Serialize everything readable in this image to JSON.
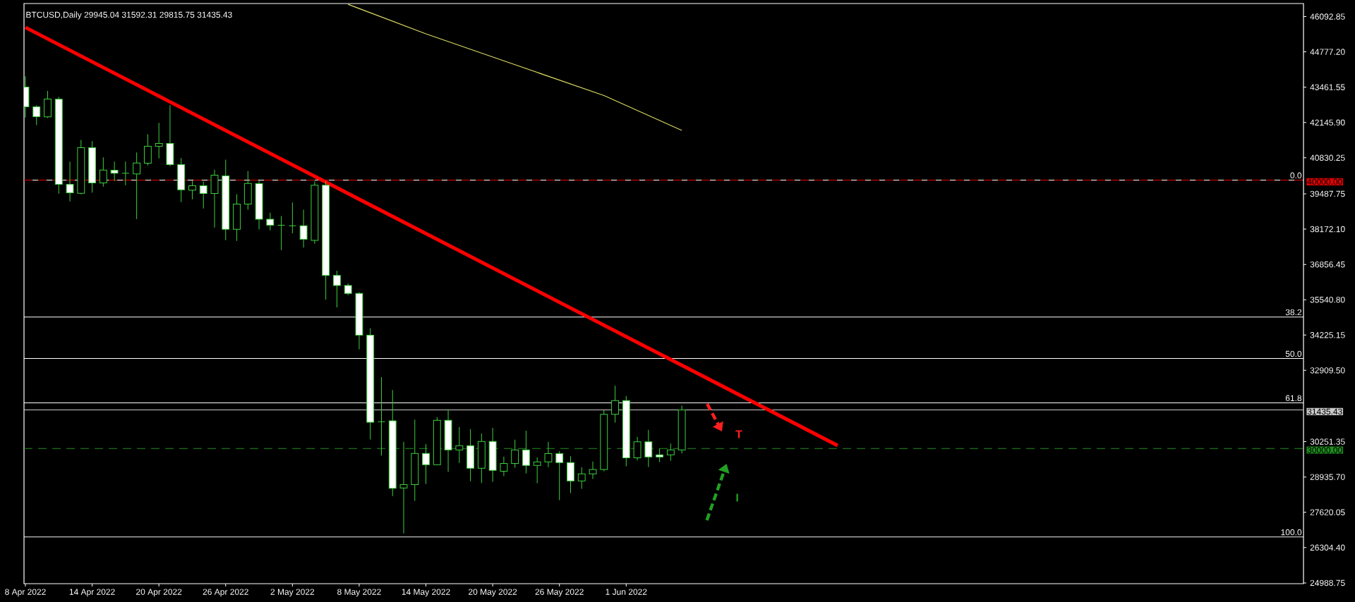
{
  "chart_data": {
    "type": "candlestick",
    "title": "BTCUSD,Daily  29945.04 31592.31 29815.75 31435.43",
    "color": "#3ccf3c",
    "x": [
      "2022-04-08",
      "2022-04-09",
      "2022-04-10",
      "2022-04-11",
      "2022-04-12",
      "2022-04-13",
      "2022-04-14",
      "2022-04-15",
      "2022-04-16",
      "2022-04-17",
      "2022-04-18",
      "2022-04-19",
      "2022-04-20",
      "2022-04-21",
      "2022-04-22",
      "2022-04-23",
      "2022-04-24",
      "2022-04-25",
      "2022-04-26",
      "2022-04-27",
      "2022-04-28",
      "2022-04-29",
      "2022-04-30",
      "2022-05-01",
      "2022-05-02",
      "2022-05-03",
      "2022-05-04",
      "2022-05-05",
      "2022-05-06",
      "2022-05-07",
      "2022-05-08",
      "2022-05-09",
      "2022-05-10",
      "2022-05-11",
      "2022-05-12",
      "2022-05-13",
      "2022-05-14",
      "2022-05-15",
      "2022-05-16",
      "2022-05-17",
      "2022-05-18",
      "2022-05-19",
      "2022-05-20",
      "2022-05-21",
      "2022-05-22",
      "2022-05-23",
      "2022-05-24",
      "2022-05-25",
      "2022-05-26",
      "2022-05-27",
      "2022-05-28",
      "2022-05-29",
      "2022-05-30",
      "2022-05-31",
      "2022-06-01",
      "2022-06-02",
      "2022-06-03",
      "2022-06-04",
      "2022-06-05",
      "2022-06-06"
    ],
    "ohlc": [
      [
        43467,
        43870,
        42329,
        42732
      ],
      [
        42732,
        42793,
        42049,
        42364
      ],
      [
        42355,
        43319,
        42312,
        43021
      ],
      [
        43012,
        43100,
        39492,
        39842
      ],
      [
        39842,
        40691,
        39203,
        39527
      ],
      [
        39509,
        41497,
        39465,
        41208
      ],
      [
        41208,
        41453,
        39535,
        39895
      ],
      [
        39895,
        40849,
        39754,
        40376
      ],
      [
        40367,
        40691,
        39965,
        40254
      ],
      [
        40254,
        40691,
        39807,
        40254
      ],
      [
        40227,
        41033,
        38546,
        40639
      ],
      [
        40630,
        41707,
        40543,
        41261
      ],
      [
        41261,
        42136,
        40805,
        41366
      ],
      [
        41366,
        42793,
        40516,
        40578
      ],
      [
        40578,
        40823,
        39176,
        39641
      ],
      [
        39623,
        39973,
        39282,
        39789
      ],
      [
        39789,
        39947,
        38940,
        39500
      ],
      [
        39500,
        40385,
        38231,
        40184
      ],
      [
        40157,
        40761,
        37758,
        38169
      ],
      [
        38169,
        39474,
        37732,
        39107
      ],
      [
        39107,
        40341,
        38896,
        39877
      ],
      [
        39865,
        39980,
        38157,
        38541
      ],
      [
        38541,
        38781,
        38128,
        38320
      ],
      [
        38320,
        38656,
        37389,
        38320
      ],
      [
        38301,
        39165,
        38013,
        38301
      ],
      [
        38301,
        38896,
        37485,
        37792
      ],
      [
        37754,
        39952,
        37629,
        39808
      ],
      [
        39808,
        39952,
        35547,
        36449
      ],
      [
        36449,
        36621,
        35259,
        36074
      ],
      [
        36074,
        36141,
        35710,
        35777
      ],
      [
        35777,
        35825,
        33694,
        34222
      ],
      [
        34222,
        34481,
        30335,
        30978
      ],
      [
        30998,
        32658,
        29731,
        30998
      ],
      [
        31027,
        32178,
        28224,
        28512
      ],
      [
        28528,
        30245,
        26830,
        28651
      ],
      [
        28651,
        31077,
        28047,
        29816
      ],
      [
        29816,
        30158,
        28677,
        29395
      ],
      [
        29395,
        31164,
        29380,
        31050
      ],
      [
        31050,
        31453,
        29124,
        29947
      ],
      [
        29947,
        30797,
        29457,
        30105
      ],
      [
        30105,
        30718,
        28774,
        29264
      ],
      [
        29264,
        30552,
        28712,
        30262
      ],
      [
        30262,
        30762,
        28756,
        29185
      ],
      [
        29150,
        29693,
        28966,
        29439
      ],
      [
        29439,
        30324,
        29282,
        29947
      ],
      [
        29947,
        30657,
        29071,
        29369
      ],
      [
        29369,
        29667,
        28704,
        29500
      ],
      [
        29500,
        30245,
        29299,
        29807
      ],
      [
        29807,
        29895,
        28073,
        29474
      ],
      [
        29474,
        29711,
        28336,
        28791
      ],
      [
        28791,
        29299,
        28494,
        29054
      ],
      [
        29054,
        29510,
        28861,
        29212
      ],
      [
        29212,
        31419,
        29150,
        31270
      ],
      [
        31270,
        32338,
        30963,
        31786
      ],
      [
        31786,
        31952,
        29334,
        29650
      ],
      [
        29650,
        30429,
        29553,
        30245
      ],
      [
        30245,
        30692,
        29308,
        29684
      ],
      [
        29763,
        30000,
        29492,
        29684
      ],
      [
        29763,
        30184,
        29544,
        29947
      ],
      [
        29945.04,
        31592.31,
        29815.75,
        31435.43
      ]
    ],
    "series": [
      {
        "type": "line",
        "color": "#ff0000",
        "x": [
          "2022-04-08",
          "2022-06-20"
        ],
        "values": [
          45690,
          30110
        ]
      },
      {
        "type": "line",
        "color": "#d8d860",
        "x": [
          "2022-05-07",
          "2022-05-14",
          "2022-05-22",
          "2022-05-30",
          "2022-06-06"
        ],
        "values": [
          46550,
          45450,
          44300,
          43150,
          41850
        ]
      }
    ],
    "xlim": [
      "2022-04-07T21:00",
      "2022-07-31T21:00"
    ],
    "ylim": [
      24960,
      46580
    ],
    "xticks": [
      {
        "value": "2022-04-08",
        "label": "8 Apr 2022"
      },
      {
        "value": "2022-04-14",
        "label": "14 Apr 2022"
      },
      {
        "value": "2022-04-20",
        "label": "20 Apr 2022"
      },
      {
        "value": "2022-04-26",
        "label": "26 Apr 2022"
      },
      {
        "value": "2022-05-02",
        "label": "2 May 2022"
      },
      {
        "value": "2022-05-08",
        "label": "8 May 2022"
      },
      {
        "value": "2022-05-14",
        "label": "14 May 2022"
      },
      {
        "value": "2022-05-20",
        "label": "20 May 2022"
      },
      {
        "value": "2022-05-26",
        "label": "26 May 2022"
      },
      {
        "value": "2022-06-01",
        "label": "1 Jun 2022"
      }
    ],
    "yticks": [
      24988.75,
      {
        "value": 26304.4,
        "label": "26304.40"
      },
      27620.05,
      {
        "value": 28935.7,
        "label": "28935.70"
      },
      30251.35,
      {
        "value": 32909.5,
        "label": "32909.50"
      },
      34225.15,
      {
        "value": 35540.8,
        "label": "35540.80"
      },
      36856.45,
      {
        "value": 38172.1,
        "label": "38172.10"
      },
      39487.75,
      40830.25,
      {
        "value": 42145.9,
        "label": "42145.90"
      },
      43461.55,
      {
        "value": 44777.2,
        "label": "44777.20"
      },
      46092.85
    ],
    "ref_lines": [
      {
        "axis": "y",
        "value": 40000,
        "label": "40000.00",
        "color": "#e00000",
        "line_style": "dashed"
      },
      {
        "axis": "y",
        "value": 30000,
        "label": "30000.00",
        "color": "#1f8f1f",
        "line_style": "dashed"
      },
      {
        "axis": "y",
        "value": 31435.43,
        "label": "31435.43",
        "color": "#c8c8c8",
        "line_style": "solid"
      },
      {
        "axis": "y",
        "value": 40000,
        "color": "#ffffff"
      },
      {
        "axis": "y",
        "value": 34899,
        "color": "#ffffff"
      },
      {
        "axis": "y",
        "value": 33350,
        "color": "#ffffff"
      },
      {
        "axis": "y",
        "value": 31699,
        "color": "#ffffff"
      },
      {
        "axis": "y",
        "value": 26700,
        "color": "#ffffff"
      }
    ],
    "annotations": [
      "0.0",
      "38.2",
      "50.0",
      "61.8",
      "100.0",
      "T",
      "I"
    ]
  }
}
